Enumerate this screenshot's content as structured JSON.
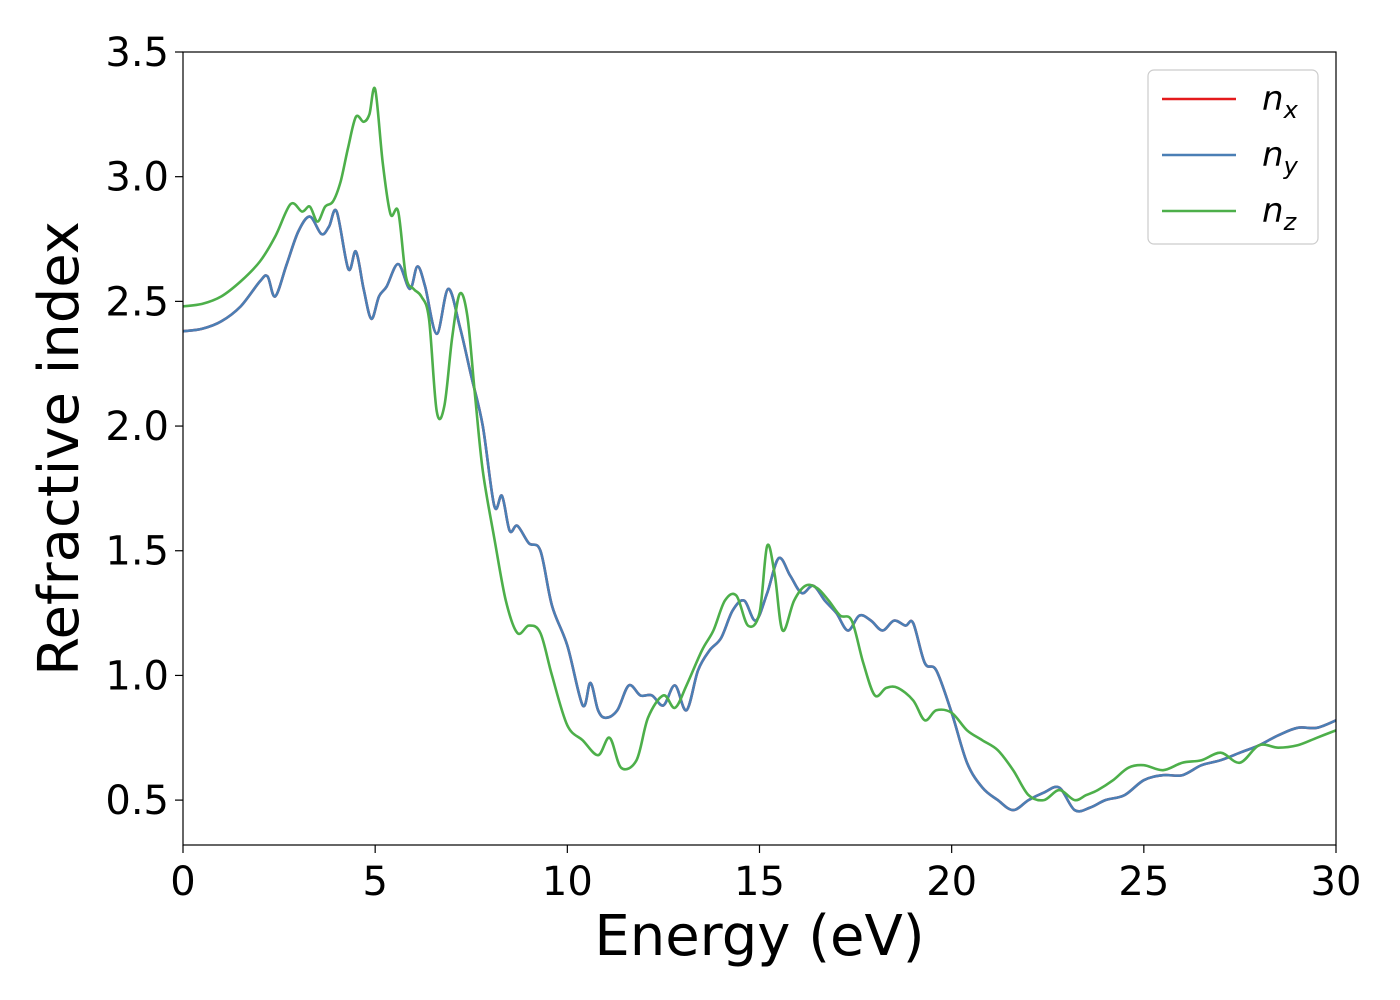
{
  "chart_data": {
    "type": "line",
    "xlabel": "Energy (eV)",
    "ylabel": "Refractive index",
    "xlim": [
      0,
      30
    ],
    "ylim": [
      0.32,
      3.5
    ],
    "xticks": [
      0,
      5,
      10,
      15,
      20,
      25,
      30
    ],
    "yticks": [
      0.5,
      1.0,
      1.5,
      2.0,
      2.5,
      3.0,
      3.5
    ],
    "grid": false,
    "legend_position": "top-right",
    "series": [
      {
        "name": "n",
        "subscript": "x",
        "color": "#e41a1c",
        "x": [
          0,
          0.5,
          1,
          1.5,
          2,
          2.2,
          2.4,
          2.7,
          3,
          3.3,
          3.6,
          3.8,
          4,
          4.3,
          4.5,
          4.7,
          4.9,
          5.1,
          5.3,
          5.6,
          5.9,
          6.1,
          6.3,
          6.6,
          6.9,
          7.2,
          7.5,
          7.8,
          8.1,
          8.3,
          8.5,
          8.7,
          9,
          9.3,
          9.6,
          10,
          10.4,
          10.6,
          10.8,
          11,
          11.3,
          11.6,
          11.9,
          12.2,
          12.5,
          12.8,
          13.1,
          13.4,
          13.7,
          14,
          14.3,
          14.6,
          14.9,
          15.2,
          15.5,
          15.8,
          16.1,
          16.4,
          16.7,
          17,
          17.3,
          17.6,
          17.9,
          18.2,
          18.5,
          18.8,
          19,
          19.3,
          19.6,
          20,
          20.4,
          20.8,
          21.2,
          21.6,
          22,
          22.4,
          22.8,
          23.2,
          23.6,
          24,
          24.5,
          25,
          25.5,
          26,
          26.5,
          27,
          27.5,
          28,
          28.5,
          29,
          29.5,
          30
        ],
        "values": [
          2.38,
          2.39,
          2.42,
          2.48,
          2.58,
          2.6,
          2.52,
          2.65,
          2.78,
          2.84,
          2.77,
          2.8,
          2.86,
          2.63,
          2.7,
          2.55,
          2.43,
          2.52,
          2.56,
          2.65,
          2.55,
          2.64,
          2.56,
          2.37,
          2.55,
          2.4,
          2.2,
          2.0,
          1.68,
          1.72,
          1.58,
          1.6,
          1.53,
          1.5,
          1.28,
          1.12,
          0.88,
          0.97,
          0.86,
          0.83,
          0.86,
          0.96,
          0.92,
          0.92,
          0.88,
          0.96,
          0.86,
          1.02,
          1.1,
          1.15,
          1.26,
          1.3,
          1.22,
          1.33,
          1.47,
          1.4,
          1.33,
          1.36,
          1.3,
          1.25,
          1.18,
          1.24,
          1.22,
          1.18,
          1.22,
          1.2,
          1.21,
          1.05,
          1.02,
          0.85,
          0.65,
          0.55,
          0.5,
          0.46,
          0.5,
          0.53,
          0.55,
          0.46,
          0.47,
          0.5,
          0.52,
          0.58,
          0.6,
          0.6,
          0.64,
          0.66,
          0.69,
          0.72,
          0.76,
          0.79,
          0.79,
          0.82
        ]
      },
      {
        "name": "n",
        "subscript": "y",
        "color": "#4a7fb5",
        "x": [
          0,
          0.5,
          1,
          1.5,
          2,
          2.2,
          2.4,
          2.7,
          3,
          3.3,
          3.6,
          3.8,
          4,
          4.3,
          4.5,
          4.7,
          4.9,
          5.1,
          5.3,
          5.6,
          5.9,
          6.1,
          6.3,
          6.6,
          6.9,
          7.2,
          7.5,
          7.8,
          8.1,
          8.3,
          8.5,
          8.7,
          9,
          9.3,
          9.6,
          10,
          10.4,
          10.6,
          10.8,
          11,
          11.3,
          11.6,
          11.9,
          12.2,
          12.5,
          12.8,
          13.1,
          13.4,
          13.7,
          14,
          14.3,
          14.6,
          14.9,
          15.2,
          15.5,
          15.8,
          16.1,
          16.4,
          16.7,
          17,
          17.3,
          17.6,
          17.9,
          18.2,
          18.5,
          18.8,
          19,
          19.3,
          19.6,
          20,
          20.4,
          20.8,
          21.2,
          21.6,
          22,
          22.4,
          22.8,
          23.2,
          23.6,
          24,
          24.5,
          25,
          25.5,
          26,
          26.5,
          27,
          27.5,
          28,
          28.5,
          29,
          29.5,
          30
        ],
        "values": [
          2.38,
          2.39,
          2.42,
          2.48,
          2.58,
          2.6,
          2.52,
          2.65,
          2.78,
          2.84,
          2.77,
          2.8,
          2.86,
          2.63,
          2.7,
          2.55,
          2.43,
          2.52,
          2.56,
          2.65,
          2.55,
          2.64,
          2.56,
          2.37,
          2.55,
          2.4,
          2.2,
          2.0,
          1.68,
          1.72,
          1.58,
          1.6,
          1.53,
          1.5,
          1.28,
          1.12,
          0.88,
          0.97,
          0.86,
          0.83,
          0.86,
          0.96,
          0.92,
          0.92,
          0.88,
          0.96,
          0.86,
          1.02,
          1.1,
          1.15,
          1.26,
          1.3,
          1.22,
          1.33,
          1.47,
          1.4,
          1.33,
          1.36,
          1.3,
          1.25,
          1.18,
          1.24,
          1.22,
          1.18,
          1.22,
          1.2,
          1.21,
          1.05,
          1.02,
          0.85,
          0.65,
          0.55,
          0.5,
          0.46,
          0.5,
          0.53,
          0.55,
          0.46,
          0.47,
          0.5,
          0.52,
          0.58,
          0.6,
          0.6,
          0.64,
          0.66,
          0.69,
          0.72,
          0.76,
          0.79,
          0.79,
          0.82
        ]
      },
      {
        "name": "n",
        "subscript": "z",
        "color": "#4daf4a",
        "x": [
          0,
          0.5,
          1,
          1.5,
          2,
          2.4,
          2.8,
          3.1,
          3.3,
          3.5,
          3.7,
          3.9,
          4.1,
          4.3,
          4.5,
          4.7,
          4.85,
          5,
          5.2,
          5.4,
          5.6,
          5.8,
          6,
          6.2,
          6.4,
          6.6,
          6.8,
          7,
          7.2,
          7.4,
          7.6,
          7.8,
          8.1,
          8.4,
          8.7,
          9,
          9.3,
          9.6,
          10,
          10.4,
          10.8,
          11.1,
          11.4,
          11.8,
          12.1,
          12.5,
          12.8,
          13.1,
          13.5,
          13.8,
          14.1,
          14.4,
          14.7,
          15,
          15.2,
          15.4,
          15.6,
          15.9,
          16.2,
          16.5,
          16.8,
          17.1,
          17.4,
          17.7,
          18,
          18.3,
          18.6,
          19,
          19.3,
          19.6,
          20,
          20.4,
          20.8,
          21.2,
          21.6,
          22,
          22.4,
          22.8,
          23.2,
          23.5,
          23.8,
          24.2,
          24.6,
          25,
          25.5,
          26,
          26.5,
          27,
          27.5,
          28,
          28.5,
          29,
          29.5,
          30
        ],
        "values": [
          2.48,
          2.49,
          2.52,
          2.58,
          2.66,
          2.76,
          2.89,
          2.86,
          2.88,
          2.82,
          2.88,
          2.9,
          2.98,
          3.12,
          3.24,
          3.22,
          3.25,
          3.35,
          3.05,
          2.85,
          2.86,
          2.6,
          2.55,
          2.52,
          2.43,
          2.06,
          2.08,
          2.35,
          2.53,
          2.44,
          2.12,
          1.82,
          1.55,
          1.3,
          1.17,
          1.2,
          1.17,
          1.0,
          0.8,
          0.74,
          0.68,
          0.75,
          0.63,
          0.66,
          0.83,
          0.92,
          0.87,
          0.96,
          1.1,
          1.18,
          1.3,
          1.32,
          1.2,
          1.25,
          1.52,
          1.4,
          1.18,
          1.3,
          1.36,
          1.35,
          1.3,
          1.24,
          1.22,
          1.05,
          0.92,
          0.95,
          0.95,
          0.9,
          0.82,
          0.86,
          0.85,
          0.78,
          0.74,
          0.7,
          0.62,
          0.52,
          0.5,
          0.54,
          0.5,
          0.52,
          0.54,
          0.58,
          0.63,
          0.64,
          0.62,
          0.65,
          0.66,
          0.69,
          0.65,
          0.72,
          0.71,
          0.72,
          0.75,
          0.78
        ]
      }
    ]
  }
}
